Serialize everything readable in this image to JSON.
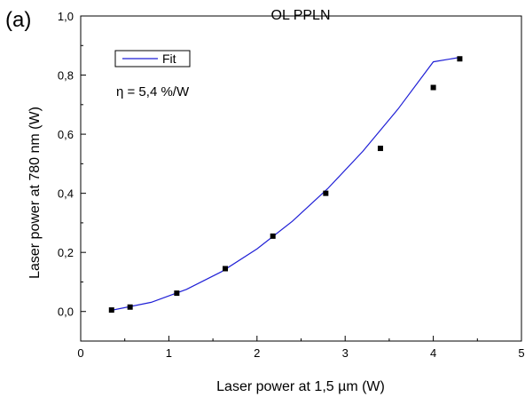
{
  "panel_label": "(a)",
  "chart_data": {
    "type": "scatter",
    "title": "OL  PPLN",
    "xlabel": "Laser power at 1,5 µm (W)",
    "ylabel": "Laser power at 780 nm (W)",
    "xlim": [
      0,
      5
    ],
    "ylim": [
      -0.1,
      1.0
    ],
    "x_ticks": [
      0,
      1,
      2,
      3,
      4,
      5
    ],
    "x_tick_labels": [
      "0",
      "1",
      "2",
      "3",
      "4",
      "5"
    ],
    "y_ticks": [
      0.0,
      0.2,
      0.4,
      0.6,
      0.8,
      1.0
    ],
    "y_tick_labels": [
      "0,0",
      "0,2",
      "0,4",
      "0,6",
      "0,8",
      "1,0"
    ],
    "grid": false,
    "legend": {
      "position": "top-left",
      "entries": [
        "Fit"
      ]
    },
    "annotation": "η = 5,4 %/W",
    "series": [
      {
        "kind": "points",
        "color": "#000000",
        "x": [
          0.35,
          0.56,
          1.09,
          1.64,
          2.18,
          2.78,
          3.4,
          4.0,
          4.3
        ],
        "y": [
          0.005,
          0.015,
          0.062,
          0.145,
          0.255,
          0.4,
          0.552,
          0.758,
          0.855
        ]
      },
      {
        "kind": "fit",
        "name": "Fit",
        "color": "#1f1fd6",
        "x": [
          0.35,
          0.8,
          1.2,
          1.6,
          2.0,
          2.4,
          2.8,
          3.2,
          3.6,
          4.0,
          4.3
        ],
        "y": [
          0.004,
          0.031,
          0.075,
          0.135,
          0.212,
          0.305,
          0.415,
          0.542,
          0.685,
          0.845,
          0.86
        ]
      }
    ]
  }
}
